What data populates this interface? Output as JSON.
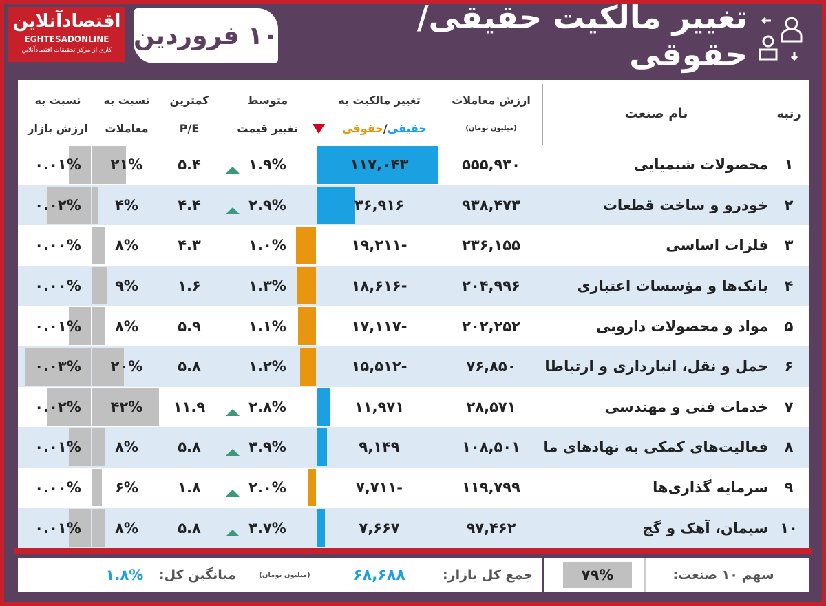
{
  "header": {
    "title": "تغییر مالکیت حقیقی/حقوقی",
    "date": "۱۰ فروردین",
    "logo": "اقتصادآنلاین",
    "logo_en": "EGHTESADONLINE",
    "logo_sub": "کاری از مرکز تحقیقات اقتصادآنلاین"
  },
  "table": {
    "columns": {
      "rank": "رتبه",
      "name": "نام صنعت",
      "value": "ارزش معاملات",
      "value_unit": "(میلیون تومان)",
      "change": "تغییر مالکیت به",
      "change_real": "حقیقی",
      "change_sep": "/",
      "change_legal": "حقوقی",
      "avg_1": "متوسط",
      "avg_2": "تغییر قیمت",
      "pe_1": "کمترین",
      "pe_2": "P/E",
      "trade_1": "نسبت به",
      "trade_2": "معاملات",
      "mkt_1": "نسبت به",
      "mkt_2": "ارزش بازار"
    },
    "rows": [
      [
        "۱",
        "محصولات شیمیایی",
        "۵۵۵,۹۳۰",
        "۱۱۷,۰۴۳",
        "۱.۹%",
        "۵.۴",
        "۲۱%",
        "۰.۰۱%"
      ],
      [
        "۲",
        "خودرو و ساخت قطعات",
        "۹۳۸,۴۷۳",
        "۳۶,۹۱۶",
        "۲.۹%",
        "۴.۴",
        "۴%",
        "۰.۰۲%"
      ],
      [
        "۳",
        "فلزات اساسی",
        "۲۳۶,۱۵۵",
        "-۱۹,۲۱۱",
        "۱.۰%",
        "۴.۳",
        "۸%",
        "۰.۰۰%"
      ],
      [
        "۴",
        "بانک‌ها و مؤسسات اعتباری",
        "۲۰۴,۹۹۶",
        "-۱۸,۶۱۶",
        "۱.۳%",
        "۱.۶",
        "۹%",
        "۰.۰۰%"
      ],
      [
        "۵",
        "مواد و محصولات دارویی",
        "۲۰۲,۲۵۲",
        "-۱۷,۱۱۷",
        "۱.۱%",
        "۵.۹",
        "۸%",
        "۰.۰۱%"
      ],
      [
        "۶",
        "حمل و نقل، انبارداری و ارتباطات",
        "۷۶,۸۵۰",
        "-۱۵,۵۱۲",
        "۱.۲%",
        "۵.۸",
        "۲۰%",
        "۰.۰۳%"
      ],
      [
        "۷",
        "خدمات فنی و مهندسی",
        "۲۸,۵۷۱",
        "۱۱,۹۷۱",
        "۲.۸%",
        "۱۱.۹",
        "۴۲%",
        "۰.۰۲%"
      ],
      [
        "۸",
        "فعالیت‌های کمکی به نهادهای مالی",
        "۱۰۸,۵۰۱",
        "۹,۱۴۹",
        "۳.۹%",
        "۵.۸",
        "۸%",
        "۰.۰۱%"
      ],
      [
        "۹",
        "سرمایه گذاری‌ها",
        "۱۱۹,۷۹۹",
        "-۷,۷۱۱",
        "۲.۰%",
        "۱.۸",
        "۶%",
        "۰.۰۰%"
      ],
      [
        "۱۰",
        "سیمان، آهک و گچ",
        "۹۷,۴۶۲",
        "۷,۶۶۷",
        "۳.۷%",
        "۵.۸",
        "۸%",
        "۰.۰۱%"
      ]
    ]
  },
  "footer": {
    "share_label": "سهم ۱۰ صنعت:",
    "share_value": "۷۹%",
    "total_label": "جمع کل بازار:",
    "total_value": "۶۸,۶۸۸",
    "total_unit": "(میلیون تومان)",
    "avg_label": "میانگین کل:",
    "avg_value": "۱.۸%"
  }
}
